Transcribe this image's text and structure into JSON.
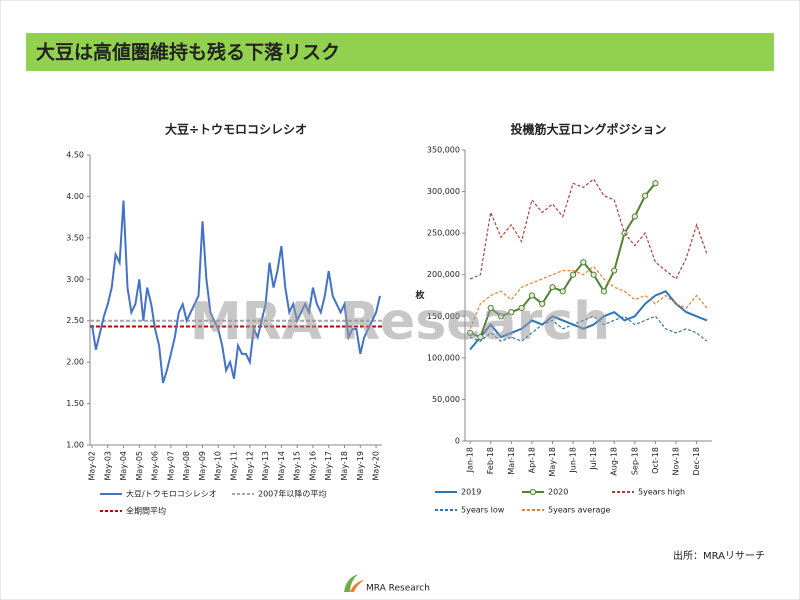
{
  "header": {
    "title": "大豆は高値圏維持も残る下落リスク"
  },
  "watermark": "MRA Research",
  "source": "出所：MRAリサーチ",
  "footer": {
    "logo_text": "MRA Research"
  },
  "chart_data": [
    {
      "type": "line",
      "title": "大豆÷トウモロコシレシオ",
      "categories": [
        "May-02",
        null,
        null,
        null,
        "May-03",
        null,
        null,
        null,
        "May-04",
        null,
        null,
        null,
        "May-05",
        null,
        null,
        null,
        "May-06",
        null,
        null,
        null,
        "May-07",
        null,
        null,
        null,
        "May-08",
        null,
        null,
        null,
        "May-09",
        null,
        null,
        null,
        "May-10",
        null,
        null,
        null,
        "May-11",
        null,
        null,
        null,
        "May-12",
        null,
        null,
        null,
        "May-13",
        null,
        null,
        null,
        "May-14",
        null,
        null,
        null,
        "May-15",
        null,
        null,
        null,
        "May-16",
        null,
        null,
        null,
        "May-17",
        null,
        null,
        null,
        "May-18",
        null,
        null,
        null,
        "May-19",
        null,
        null,
        null,
        "May-20",
        null
      ],
      "series": [
        {
          "name": "大豆/トウモロコシレシオ",
          "color": "#4472c4",
          "values": [
            2.45,
            2.15,
            2.35,
            2.55,
            2.7,
            2.9,
            3.3,
            3.2,
            3.95,
            2.9,
            2.6,
            2.7,
            3.0,
            2.5,
            2.9,
            2.7,
            2.4,
            2.2,
            1.75,
            1.9,
            2.1,
            2.3,
            2.6,
            2.7,
            2.5,
            2.6,
            2.7,
            2.8,
            3.7,
            3.0,
            2.6,
            2.5,
            2.4,
            2.2,
            1.9,
            2.0,
            1.8,
            2.2,
            2.1,
            2.1,
            2.0,
            2.4,
            2.3,
            2.5,
            2.7,
            3.2,
            2.9,
            3.1,
            3.4,
            2.9,
            2.6,
            2.7,
            2.5,
            2.6,
            2.7,
            2.6,
            2.9,
            2.7,
            2.6,
            2.8,
            3.1,
            2.8,
            2.7,
            2.6,
            2.7,
            2.3,
            2.4,
            2.4,
            2.1,
            2.3,
            2.4,
            2.5,
            2.6,
            2.8
          ]
        }
      ],
      "reference_lines": [
        {
          "name": "2007年以降の平均",
          "value": 2.5,
          "color": "#a6a6a6"
        },
        {
          "name": "全期間平均",
          "value": 2.43,
          "color": "#c00000"
        }
      ],
      "ylim": [
        1,
        4.5
      ],
      "yticks": [
        {
          "value": 1,
          "label": "1.00"
        },
        {
          "value": 1.5,
          "label": "1.50"
        },
        {
          "value": 2,
          "label": "2.00"
        },
        {
          "value": 2.5,
          "label": "2.50"
        },
        {
          "value": 3,
          "label": "3.00"
        },
        {
          "value": 3.5,
          "label": "3.50"
        },
        {
          "value": 4,
          "label": "4.00"
        },
        {
          "value": 4.5,
          "label": "4.50"
        }
      ]
    },
    {
      "type": "line",
      "title": "投機筋大豆ロングポジション",
      "y_label": "枚",
      "categories": [
        "Jan-18",
        null,
        "Feb-18",
        null,
        "Mar-18",
        null,
        "Apr-18",
        null,
        "May-18",
        null,
        "Jun-18",
        null,
        "Jul-18",
        null,
        "Aug-18",
        null,
        "Sep-18",
        null,
        "Oct-18",
        null,
        "Nov-18",
        null,
        "Dec-18",
        null
      ],
      "series": [
        {
          "name": "2019",
          "color": "#2e75b6",
          "dash": false,
          "marker": false,
          "values": [
            110000,
            125000,
            140000,
            125000,
            130000,
            135000,
            145000,
            140000,
            150000,
            145000,
            140000,
            135000,
            140000,
            150000,
            155000,
            145000,
            150000,
            165000,
            175000,
            180000,
            165000,
            155000,
            150000,
            145000
          ]
        },
        {
          "name": "2020",
          "color": "#548235",
          "dash": false,
          "marker": true,
          "values": [
            130000,
            125000,
            160000,
            150000,
            155000,
            160000,
            175000,
            165000,
            185000,
            180000,
            200000,
            215000,
            200000,
            180000,
            205000,
            250000,
            270000,
            295000,
            310000,
            null,
            null,
            null,
            null,
            null
          ]
        },
        {
          "name": "5years high",
          "color": "#a9423e",
          "dash": true,
          "marker": false,
          "values": [
            195000,
            200000,
            275000,
            245000,
            260000,
            240000,
            290000,
            275000,
            285000,
            270000,
            310000,
            305000,
            315000,
            295000,
            290000,
            250000,
            235000,
            250000,
            215000,
            205000,
            195000,
            220000,
            260000,
            225000
          ]
        },
        {
          "name": "5years low",
          "color": "#2e75b6",
          "dash": true,
          "marker": false,
          "values": [
            125000,
            120000,
            130000,
            120000,
            125000,
            120000,
            130000,
            140000,
            145000,
            135000,
            140000,
            145000,
            150000,
            140000,
            145000,
            150000,
            140000,
            145000,
            150000,
            135000,
            130000,
            135000,
            130000,
            120000
          ]
        },
        {
          "name": "5years average",
          "color": "#ed7d31",
          "dash": true,
          "marker": false,
          "values": [
            135000,
            165000,
            175000,
            180000,
            170000,
            185000,
            190000,
            195000,
            200000,
            205000,
            205000,
            200000,
            210000,
            195000,
            185000,
            180000,
            170000,
            175000,
            165000,
            175000,
            165000,
            160000,
            175000,
            160000
          ]
        }
      ],
      "ylim": [
        0,
        350000
      ],
      "yticks": [
        0,
        {
          "value": 50000,
          "label": "50,000"
        },
        {
          "value": 100000,
          "label": "100,000"
        },
        {
          "value": 150000,
          "label": "150,000"
        },
        {
          "value": 200000,
          "label": "200,000"
        },
        {
          "value": 250000,
          "label": "250,000"
        },
        {
          "value": 300000,
          "label": "300,000"
        },
        {
          "value": 350000,
          "label": "350,000"
        }
      ]
    }
  ]
}
